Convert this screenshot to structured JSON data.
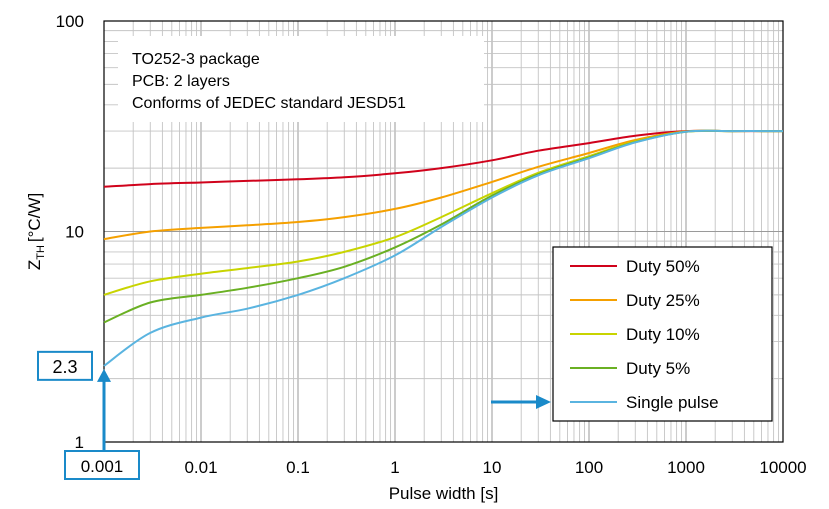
{
  "chart_data": {
    "type": "line",
    "title": "",
    "xlabel": "Pulse width [s]",
    "ylabel_main": "Z",
    "ylabel_sub": "TH",
    "ylabel_unit": "[°C/W]",
    "x_scale": "log",
    "y_scale": "log",
    "xlim": [
      0.001,
      10000
    ],
    "ylim": [
      1,
      100
    ],
    "x_ticks": [
      {
        "value": 0.001,
        "label": "0.001"
      },
      {
        "value": 0.01,
        "label": "0.01"
      },
      {
        "value": 0.1,
        "label": "0.1"
      },
      {
        "value": 1,
        "label": "1"
      },
      {
        "value": 10,
        "label": "10"
      },
      {
        "value": 100,
        "label": "100"
      },
      {
        "value": 1000,
        "label": "1000"
      },
      {
        "value": 10000,
        "label": "10000"
      }
    ],
    "y_ticks": [
      {
        "value": 1,
        "label": "1"
      },
      {
        "value": 10,
        "label": "10"
      },
      {
        "value": 100,
        "label": "100"
      }
    ],
    "grid": true,
    "legend_position": "bottom-right",
    "info_lines": [
      "TO252-3 package",
      "PCB: 2 layers",
      "Conforms of JEDEC standard JESD51"
    ],
    "series": [
      {
        "name": "Duty 50%",
        "color": "#d0021b",
        "x": [
          0.001,
          0.003,
          0.01,
          0.03,
          0.1,
          0.3,
          1,
          3,
          10,
          30,
          100,
          300,
          1000,
          3000,
          10000
        ],
        "y": [
          16.3,
          16.8,
          17.1,
          17.4,
          17.7,
          18.1,
          18.9,
          20.0,
          21.8,
          24.2,
          26.3,
          28.5,
          30.0,
          30.0,
          30.0
        ]
      },
      {
        "name": "Duty 25%",
        "color": "#f5a000",
        "x": [
          0.001,
          0.003,
          0.01,
          0.03,
          0.1,
          0.3,
          1,
          3,
          10,
          30,
          100,
          300,
          1000,
          3000,
          10000
        ],
        "y": [
          9.2,
          10.0,
          10.4,
          10.7,
          11.1,
          11.7,
          12.8,
          14.5,
          17.2,
          20.3,
          23.6,
          27.2,
          29.9,
          30.0,
          30.0
        ]
      },
      {
        "name": "Duty 10%",
        "color": "#c8d400",
        "x": [
          0.001,
          0.003,
          0.01,
          0.03,
          0.1,
          0.3,
          1,
          3,
          10,
          30,
          100,
          300,
          1000,
          3000,
          10000
        ],
        "y": [
          5.0,
          5.8,
          6.3,
          6.7,
          7.2,
          8.0,
          9.4,
          11.7,
          15.2,
          19.0,
          22.8,
          26.8,
          29.8,
          30.0,
          30.0
        ]
      },
      {
        "name": "Duty 5%",
        "color": "#6ab023",
        "x": [
          0.001,
          0.003,
          0.01,
          0.03,
          0.1,
          0.3,
          1,
          3,
          10,
          30,
          100,
          300,
          1000,
          3000,
          10000
        ],
        "y": [
          3.7,
          4.6,
          5.0,
          5.4,
          6.0,
          6.8,
          8.4,
          10.8,
          14.8,
          18.7,
          22.5,
          26.6,
          29.8,
          30.0,
          30.0
        ]
      },
      {
        "name": "Single pulse",
        "color": "#5ab4e0",
        "x": [
          0.001,
          0.003,
          0.01,
          0.03,
          0.1,
          0.3,
          1,
          3,
          10,
          30,
          100,
          300,
          1000,
          3000,
          10000
        ],
        "y": [
          2.3,
          3.3,
          3.9,
          4.3,
          5.0,
          6.0,
          7.7,
          10.5,
          14.5,
          18.5,
          22.3,
          26.5,
          29.8,
          30.0,
          30.0
        ]
      }
    ],
    "annotations": {
      "x_marker_label": "0.001",
      "y_marker_label": "2.3",
      "x_marker_value": 0.001,
      "y_marker_value": 2.3,
      "arrow_color": "#1a8ac9",
      "legend_arrow_target": "Single pulse"
    }
  }
}
